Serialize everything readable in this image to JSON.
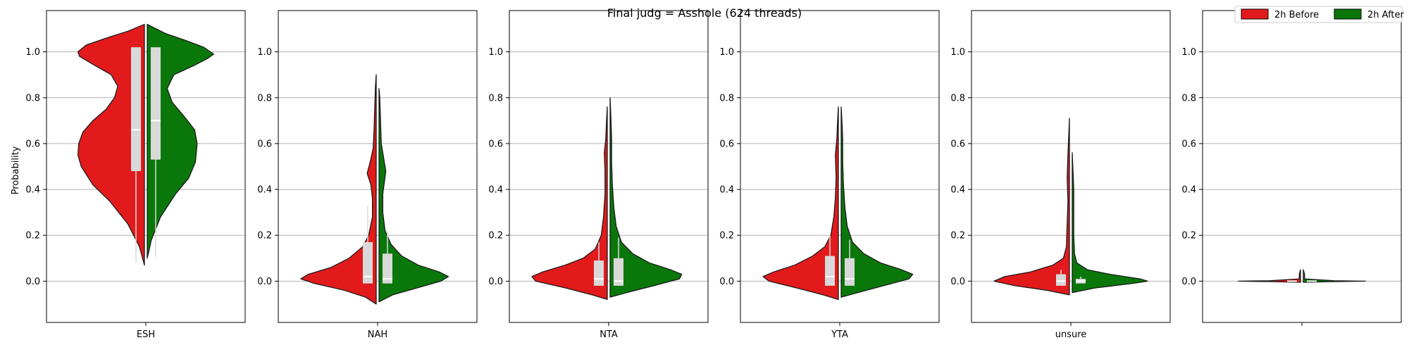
{
  "chart_data": {
    "type": "violin",
    "title": "Final judg = Asshole (624 threads)",
    "ylabel": "Probability",
    "ylim": [
      -0.18,
      1.18
    ],
    "yticks": [
      0.0,
      0.2,
      0.4,
      0.6,
      0.8,
      1.0
    ],
    "ytick_labels": [
      "0.0",
      "0.2",
      "0.4",
      "0.6",
      "0.8",
      "1.0"
    ],
    "grid": "horizontal",
    "legend_position": "top-right",
    "series": [
      {
        "name": "2h Before",
        "color": "#e31a1c",
        "side": "left"
      },
      {
        "name": "2h After",
        "color": "#0a770a",
        "side": "right"
      }
    ],
    "panels": [
      {
        "category": "ESH",
        "before": {
          "range": [
            0.07,
            1.12
          ],
          "q1": 0.48,
          "median": 0.66,
          "q3": 1.02,
          "whisker_low": 0.08,
          "whisker_high": 1.02,
          "density": [
            [
              0.07,
              0.0
            ],
            [
              0.15,
              0.06
            ],
            [
              0.25,
              0.2
            ],
            [
              0.35,
              0.42
            ],
            [
              0.42,
              0.62
            ],
            [
              0.5,
              0.76
            ],
            [
              0.55,
              0.8
            ],
            [
              0.6,
              0.79
            ],
            [
              0.65,
              0.74
            ],
            [
              0.7,
              0.62
            ],
            [
              0.75,
              0.46
            ],
            [
              0.8,
              0.36
            ],
            [
              0.85,
              0.32
            ],
            [
              0.9,
              0.4
            ],
            [
              0.95,
              0.64
            ],
            [
              0.98,
              0.78
            ],
            [
              1.0,
              0.8
            ],
            [
              1.03,
              0.7
            ],
            [
              1.06,
              0.46
            ],
            [
              1.09,
              0.2
            ],
            [
              1.12,
              0.0
            ]
          ]
        },
        "after": {
          "range": [
            0.1,
            1.12
          ],
          "q1": 0.53,
          "median": 0.7,
          "q3": 1.02,
          "whisker_low": 0.1,
          "whisker_high": 1.02,
          "density": [
            [
              0.1,
              0.0
            ],
            [
              0.18,
              0.05
            ],
            [
              0.28,
              0.16
            ],
            [
              0.38,
              0.34
            ],
            [
              0.45,
              0.5
            ],
            [
              0.52,
              0.58
            ],
            [
              0.6,
              0.6
            ],
            [
              0.66,
              0.57
            ],
            [
              0.72,
              0.44
            ],
            [
              0.78,
              0.3
            ],
            [
              0.84,
              0.24
            ],
            [
              0.9,
              0.32
            ],
            [
              0.94,
              0.56
            ],
            [
              0.97,
              0.72
            ],
            [
              0.99,
              0.8
            ],
            [
              1.02,
              0.68
            ],
            [
              1.05,
              0.46
            ],
            [
              1.08,
              0.22
            ],
            [
              1.12,
              0.0
            ]
          ]
        }
      },
      {
        "category": "NAH",
        "before": {
          "range": [
            -0.1,
            0.9
          ],
          "q1": -0.01,
          "median": 0.02,
          "q3": 0.17,
          "whisker_low": -0.01,
          "whisker_high": 0.33,
          "density": [
            [
              -0.1,
              0.0
            ],
            [
              -0.07,
              0.14
            ],
            [
              -0.04,
              0.42
            ],
            [
              -0.01,
              0.82
            ],
            [
              0.01,
              1.0
            ],
            [
              0.03,
              0.9
            ],
            [
              0.06,
              0.6
            ],
            [
              0.1,
              0.36
            ],
            [
              0.15,
              0.18
            ],
            [
              0.2,
              0.1
            ],
            [
              0.28,
              0.05
            ],
            [
              0.36,
              0.05
            ],
            [
              0.42,
              0.07
            ],
            [
              0.47,
              0.12
            ],
            [
              0.52,
              0.08
            ],
            [
              0.58,
              0.04
            ],
            [
              0.65,
              0.03
            ],
            [
              0.75,
              0.02
            ],
            [
              0.85,
              0.01
            ],
            [
              0.9,
              0.0
            ]
          ]
        },
        "after": {
          "range": [
            -0.09,
            0.84
          ],
          "q1": -0.01,
          "median": 0.01,
          "q3": 0.12,
          "whisker_low": -0.01,
          "whisker_high": 0.22,
          "density": [
            [
              -0.09,
              0.0
            ],
            [
              -0.06,
              0.18
            ],
            [
              -0.03,
              0.5
            ],
            [
              0.0,
              0.82
            ],
            [
              0.02,
              0.92
            ],
            [
              0.04,
              0.8
            ],
            [
              0.07,
              0.52
            ],
            [
              0.11,
              0.3
            ],
            [
              0.16,
              0.16
            ],
            [
              0.22,
              0.08
            ],
            [
              0.3,
              0.05
            ],
            [
              0.38,
              0.05
            ],
            [
              0.43,
              0.07
            ],
            [
              0.48,
              0.09
            ],
            [
              0.54,
              0.06
            ],
            [
              0.6,
              0.03
            ],
            [
              0.7,
              0.02
            ],
            [
              0.8,
              0.01
            ],
            [
              0.84,
              0.0
            ]
          ]
        }
      },
      {
        "category": "NTA",
        "before": {
          "range": [
            -0.08,
            0.76
          ],
          "q1": -0.02,
          "median": 0.01,
          "q3": 0.09,
          "whisker_low": -0.02,
          "whisker_high": 0.17,
          "density": [
            [
              -0.08,
              0.0
            ],
            [
              -0.06,
              0.2
            ],
            [
              -0.03,
              0.55
            ],
            [
              0.0,
              0.95
            ],
            [
              0.02,
              1.0
            ],
            [
              0.04,
              0.86
            ],
            [
              0.07,
              0.56
            ],
            [
              0.1,
              0.32
            ],
            [
              0.14,
              0.16
            ],
            [
              0.2,
              0.08
            ],
            [
              0.28,
              0.05
            ],
            [
              0.38,
              0.03
            ],
            [
              0.48,
              0.03
            ],
            [
              0.56,
              0.04
            ],
            [
              0.62,
              0.02
            ],
            [
              0.7,
              0.01
            ],
            [
              0.76,
              0.0
            ]
          ]
        },
        "after": {
          "range": [
            -0.07,
            0.8
          ],
          "q1": -0.02,
          "median": 0.0,
          "q3": 0.1,
          "whisker_low": -0.02,
          "whisker_high": 0.19,
          "density": [
            [
              -0.07,
              0.0
            ],
            [
              -0.05,
              0.22
            ],
            [
              -0.02,
              0.58
            ],
            [
              0.01,
              0.92
            ],
            [
              0.03,
              0.95
            ],
            [
              0.05,
              0.8
            ],
            [
              0.08,
              0.52
            ],
            [
              0.12,
              0.3
            ],
            [
              0.17,
              0.15
            ],
            [
              0.24,
              0.08
            ],
            [
              0.32,
              0.05
            ],
            [
              0.42,
              0.03
            ],
            [
              0.52,
              0.02
            ],
            [
              0.62,
              0.02
            ],
            [
              0.72,
              0.01
            ],
            [
              0.8,
              0.0
            ]
          ]
        }
      },
      {
        "category": "YTA",
        "before": {
          "range": [
            -0.08,
            0.76
          ],
          "q1": -0.02,
          "median": 0.02,
          "q3": 0.11,
          "whisker_low": -0.02,
          "whisker_high": 0.2,
          "density": [
            [
              -0.08,
              0.0
            ],
            [
              -0.06,
              0.2
            ],
            [
              -0.03,
              0.55
            ],
            [
              0.0,
              0.92
            ],
            [
              0.02,
              1.0
            ],
            [
              0.04,
              0.86
            ],
            [
              0.07,
              0.58
            ],
            [
              0.11,
              0.34
            ],
            [
              0.15,
              0.18
            ],
            [
              0.2,
              0.1
            ],
            [
              0.28,
              0.06
            ],
            [
              0.36,
              0.04
            ],
            [
              0.45,
              0.03
            ],
            [
              0.55,
              0.04
            ],
            [
              0.62,
              0.02
            ],
            [
              0.7,
              0.01
            ],
            [
              0.76,
              0.0
            ]
          ]
        },
        "after": {
          "range": [
            -0.07,
            0.76
          ],
          "q1": -0.02,
          "median": 0.01,
          "q3": 0.1,
          "whisker_low": -0.02,
          "whisker_high": 0.18,
          "density": [
            [
              -0.07,
              0.0
            ],
            [
              -0.05,
              0.22
            ],
            [
              -0.02,
              0.56
            ],
            [
              0.01,
              0.9
            ],
            [
              0.03,
              0.95
            ],
            [
              0.05,
              0.8
            ],
            [
              0.08,
              0.52
            ],
            [
              0.12,
              0.3
            ],
            [
              0.17,
              0.15
            ],
            [
              0.24,
              0.08
            ],
            [
              0.32,
              0.05
            ],
            [
              0.42,
              0.03
            ],
            [
              0.52,
              0.02
            ],
            [
              0.62,
              0.02
            ],
            [
              0.7,
              0.01
            ],
            [
              0.76,
              0.0
            ]
          ]
        }
      },
      {
        "category": "unsure",
        "before": {
          "range": [
            -0.06,
            0.71
          ],
          "q1": -0.02,
          "median": 0.0,
          "q3": 0.03,
          "whisker_low": -0.02,
          "whisker_high": 0.05,
          "density": [
            [
              -0.06,
              0.0
            ],
            [
              -0.04,
              0.3
            ],
            [
              -0.02,
              0.72
            ],
            [
              0.0,
              1.0
            ],
            [
              0.02,
              0.86
            ],
            [
              0.04,
              0.52
            ],
            [
              0.07,
              0.22
            ],
            [
              0.1,
              0.08
            ],
            [
              0.15,
              0.04
            ],
            [
              0.25,
              0.03
            ],
            [
              0.35,
              0.02
            ],
            [
              0.45,
              0.03
            ],
            [
              0.55,
              0.02
            ],
            [
              0.63,
              0.01
            ],
            [
              0.71,
              0.0
            ]
          ]
        },
        "after": {
          "range": [
            -0.05,
            0.56
          ],
          "q1": -0.01,
          "median": 0.0,
          "q3": 0.01,
          "whisker_low": -0.01,
          "whisker_high": 0.02,
          "density": [
            [
              -0.05,
              0.0
            ],
            [
              -0.03,
              0.3
            ],
            [
              -0.01,
              0.8
            ],
            [
              0.0,
              1.0
            ],
            [
              0.01,
              0.9
            ],
            [
              0.03,
              0.5
            ],
            [
              0.05,
              0.2
            ],
            [
              0.08,
              0.06
            ],
            [
              0.12,
              0.03
            ],
            [
              0.2,
              0.02
            ],
            [
              0.3,
              0.02
            ],
            [
              0.4,
              0.02
            ],
            [
              0.48,
              0.01
            ],
            [
              0.56,
              0.0
            ]
          ]
        }
      },
      {
        "category": "",
        "before": {
          "range": [
            -0.005,
            0.05
          ],
          "q1": 0.0,
          "median": 0.0,
          "q3": 0.0,
          "whisker_low": 0.0,
          "whisker_high": 0.0,
          "density": [
            [
              -0.005,
              0.0
            ],
            [
              -0.002,
              0.5
            ],
            [
              0.0,
              1.0
            ],
            [
              0.002,
              0.5
            ],
            [
              0.01,
              0.02
            ],
            [
              0.03,
              0.02
            ],
            [
              0.05,
              0.0
            ]
          ]
        },
        "after": {
          "range": [
            -0.005,
            0.05
          ],
          "q1": 0.0,
          "median": 0.0,
          "q3": 0.0,
          "whisker_low": 0.0,
          "whisker_high": 0.0,
          "density": [
            [
              -0.005,
              0.0
            ],
            [
              -0.002,
              0.5
            ],
            [
              0.0,
              1.0
            ],
            [
              0.002,
              0.5
            ],
            [
              0.01,
              0.02
            ],
            [
              0.03,
              0.02
            ],
            [
              0.05,
              0.0
            ]
          ]
        }
      }
    ]
  }
}
